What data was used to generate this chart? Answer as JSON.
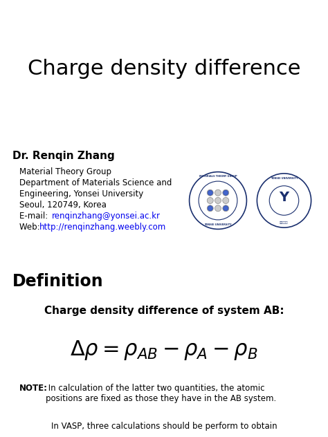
{
  "title": "Charge density difference",
  "author": "Dr. Renqin Zhang",
  "affiliation_lines": [
    "Material Theory Group",
    "Department of Materials Science and",
    "Engineering, Yonsei University",
    "Seoul, 120749, Korea"
  ],
  "email_label": "E-mail: ",
  "email_text": "renqinzhang@yonsei.ac.kr",
  "web_label": "Web: ",
  "web_text": "http://renqinzhang.weebly.com",
  "section_definition": "Definition",
  "charge_density_text": "Charge density difference of system AB:",
  "note_bold": "NOTE:",
  "note_text": " In calculation of the latter two quantities, the atomic\npositions are fixed as those they have in the AB system.",
  "footer_text": "In VASP, three calculations should be perform to obtain",
  "bg_color": "#ffffff",
  "text_color": "#000000",
  "link_color": "#0000EE",
  "title_fontsize": 22,
  "author_fontsize": 11,
  "affil_fontsize": 8.5,
  "section_fontsize": 17,
  "charge_density_fontsize": 11,
  "formula_fontsize": 22,
  "note_fontsize": 8.5,
  "footer_fontsize": 8.5,
  "logo_color": "#1a2f6e"
}
